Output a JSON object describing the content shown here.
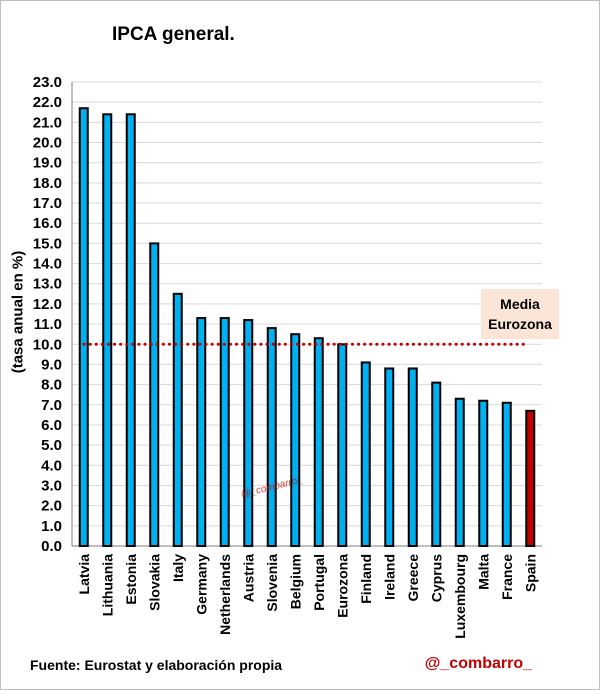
{
  "chart_data": {
    "type": "bar",
    "title": "IPCA general.",
    "ylabel": "(tasa anual en %)",
    "xlabel": "",
    "ylim": [
      0,
      23
    ],
    "ytick_step": 1,
    "categories": [
      "Latvia",
      "Lithuania",
      "Estonia",
      "Slovakia",
      "Italy",
      "Germany",
      "Netherlands",
      "Austria",
      "Slovenia",
      "Belgium",
      "Portugal",
      "Eurozona",
      "Finland",
      "Ireland",
      "Greece",
      "Cyprus",
      "Luxembourg",
      "Malta",
      "France",
      "Spain"
    ],
    "values": [
      21.7,
      21.4,
      21.4,
      15.0,
      12.5,
      11.3,
      11.3,
      11.2,
      10.8,
      10.5,
      10.3,
      10.0,
      9.1,
      8.8,
      8.8,
      8.1,
      7.3,
      7.2,
      7.1,
      6.7
    ],
    "reference_line": {
      "value": 10.0,
      "label_line1": "Media",
      "label_line2": "Eurozona",
      "color": "#c00000",
      "style": "dotted"
    },
    "grid": true,
    "colors": {
      "bar": "#00b0f0",
      "highlight_bar": "#c00000",
      "highlight_category": "Spain",
      "bar_edge": "#000000",
      "grid": "#d9d9d9"
    }
  },
  "footer": {
    "source": "Fuente: Eurostat y elaboración propia",
    "handle": "@_combarro_"
  },
  "watermark": "@_combarro_"
}
